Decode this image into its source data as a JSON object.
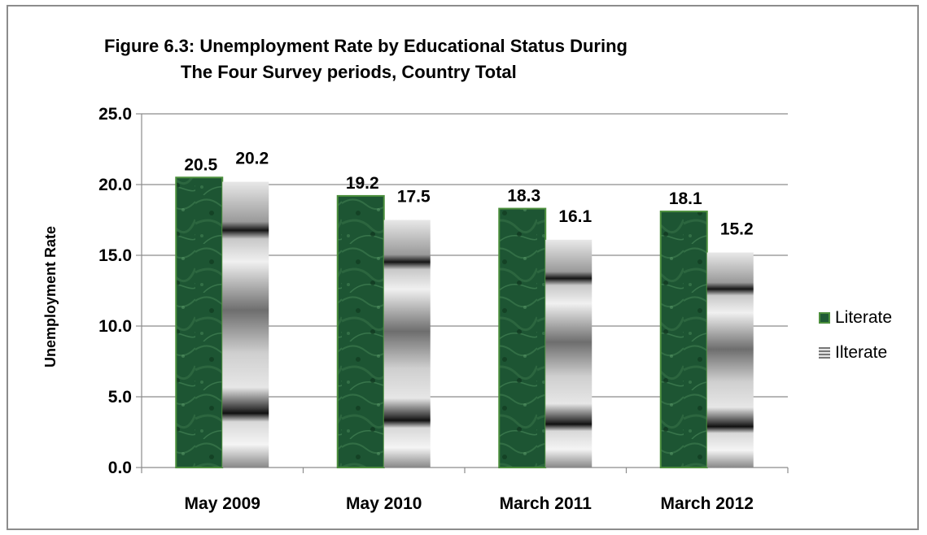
{
  "chart_data": {
    "type": "bar",
    "title_line1": "Figure 6.3:  Unemployment Rate by Educational Status During",
    "title_line2": "The Four Survey periods, Country Total",
    "xlabel": "",
    "ylabel": "Unemployment Rate",
    "categories": [
      "May 2009",
      "May 2010",
      "March 2011",
      "March 2012"
    ],
    "series": [
      {
        "name": "Literate",
        "values": [
          20.5,
          19.2,
          18.3,
          18.1
        ],
        "labels": [
          "20.5",
          "19.2",
          "18.3",
          "18.1"
        ],
        "color": "#1f5a35"
      },
      {
        "name": "Ilterate",
        "values": [
          20.2,
          17.5,
          16.1,
          15.2
        ],
        "labels": [
          "20.2",
          "17.5",
          "16.1",
          "15.2"
        ],
        "color": "#9a9a9a"
      }
    ],
    "ylim": [
      0,
      25
    ],
    "yticks": [
      0,
      5,
      10,
      15,
      20,
      25
    ],
    "ytick_labels": [
      "0.0",
      "5.0",
      "10.0",
      "15.0",
      "20.0",
      "25.0"
    ],
    "grid": true,
    "legend_position": "right"
  }
}
